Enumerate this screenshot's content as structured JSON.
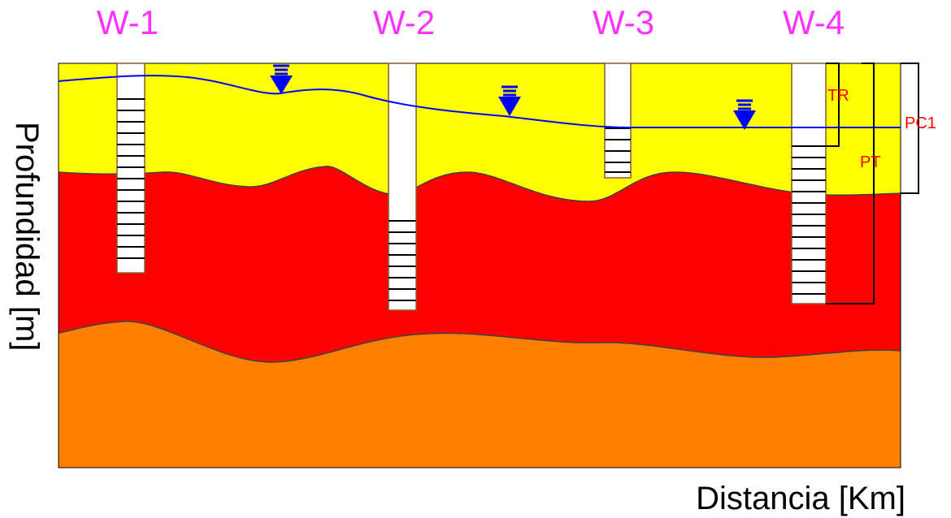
{
  "wells": [
    {
      "label": "W-1"
    },
    {
      "label": "W-2"
    },
    {
      "label": "W-3"
    },
    {
      "label": "W-4"
    }
  ],
  "annotations": {
    "tr": "TR",
    "pt": "PT",
    "pc1": "PC1"
  },
  "axes": {
    "xlabel": "Distancia [Km]",
    "ylabel": "Profundidad [m]"
  },
  "colors": {
    "well_label": "#ff33ff",
    "layer_top": "#ffff00",
    "layer_middle": "#ff0000",
    "layer_bottom": "#ff8000",
    "water_table": "#0000ff",
    "annotation": "#ff0000",
    "bracket": "#000000"
  }
}
